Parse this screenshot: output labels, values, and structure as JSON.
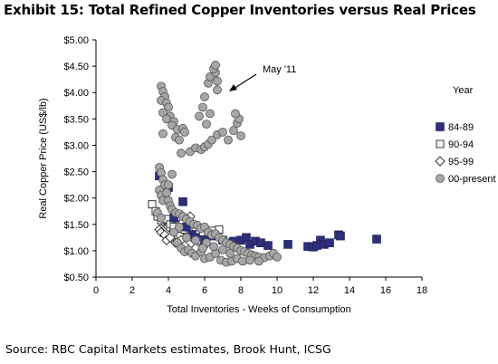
{
  "title": "Exhibit 15: Total Refined Copper Inventories versus Real Prices",
  "source": "Source: RBC Capital Markets estimates, Brook Hunt, ICSG",
  "chart_data": {
    "type": "scatter",
    "xlabel": "Total Inventories - Weeks of Consumption",
    "ylabel": "Real Copper Price (US$/lb)",
    "xlim": [
      0,
      18
    ],
    "ylim": [
      0.5,
      5.0
    ],
    "x_ticks": [
      0,
      2,
      4,
      6,
      8,
      10,
      12,
      14,
      16,
      18
    ],
    "x_tick_labels": [
      "0",
      "2",
      "4",
      "6",
      "8",
      "10",
      "12",
      "14",
      "16",
      "18"
    ],
    "y_ticks": [
      0.5,
      1.0,
      1.5,
      2.0,
      2.5,
      3.0,
      3.5,
      4.0,
      4.5,
      5.0
    ],
    "y_tick_labels": [
      "$0.50",
      "$1.00",
      "$1.50",
      "$2.00",
      "$2.50",
      "$3.00",
      "$3.50",
      "$4.00",
      "$4.50",
      "$5.00"
    ],
    "legend_title": "Year",
    "legend_position": "right",
    "grid": false,
    "annotations": [
      {
        "text": "May '11",
        "arrow_to": [
          7.3,
          4.0
        ]
      }
    ],
    "series": [
      {
        "name": "84-89",
        "marker": "square",
        "color": "#2e2e7a",
        "points": [
          [
            3.5,
            2.42
          ],
          [
            4.0,
            2.2
          ],
          [
            4.8,
            1.93
          ],
          [
            4.3,
            1.62
          ],
          [
            5.0,
            1.45
          ],
          [
            5.3,
            1.3
          ],
          [
            5.5,
            1.25
          ],
          [
            6.0,
            1.2
          ],
          [
            6.5,
            1.28
          ],
          [
            7.0,
            1.2
          ],
          [
            7.3,
            1.15
          ],
          [
            7.6,
            1.18
          ],
          [
            8.0,
            1.2
          ],
          [
            8.3,
            1.25
          ],
          [
            8.5,
            1.12
          ],
          [
            8.8,
            1.18
          ],
          [
            9.1,
            1.15
          ],
          [
            9.5,
            1.1
          ],
          [
            10.6,
            1.12
          ],
          [
            11.7,
            1.08
          ],
          [
            12.0,
            1.07
          ],
          [
            12.2,
            1.1
          ],
          [
            12.4,
            1.2
          ],
          [
            12.6,
            1.12
          ],
          [
            12.9,
            1.15
          ],
          [
            13.4,
            1.3
          ],
          [
            13.5,
            1.28
          ],
          [
            15.5,
            1.22
          ]
        ]
      },
      {
        "name": "90-94",
        "marker": "hollow-square",
        "color": "#333333",
        "points": [
          [
            3.1,
            1.88
          ],
          [
            3.3,
            1.75
          ],
          [
            3.4,
            1.65
          ],
          [
            3.6,
            1.58
          ],
          [
            3.9,
            1.6
          ],
          [
            4.1,
            1.5
          ],
          [
            4.3,
            1.45
          ],
          [
            4.6,
            1.42
          ],
          [
            4.9,
            1.4
          ],
          [
            5.2,
            1.38
          ],
          [
            5.5,
            1.45
          ],
          [
            5.9,
            1.35
          ],
          [
            6.2,
            1.3
          ],
          [
            6.4,
            1.38
          ],
          [
            6.8,
            1.4
          ]
        ]
      },
      {
        "name": "95-99",
        "marker": "hollow-diamond",
        "color": "#333333",
        "points": [
          [
            3.5,
            1.4
          ],
          [
            3.6,
            1.35
          ],
          [
            3.7,
            1.55
          ],
          [
            3.8,
            1.3
          ],
          [
            3.9,
            1.2
          ],
          [
            4.0,
            1.45
          ],
          [
            4.1,
            1.25
          ],
          [
            4.2,
            1.6
          ],
          [
            4.3,
            1.35
          ],
          [
            4.4,
            1.15
          ],
          [
            4.5,
            1.5
          ],
          [
            4.6,
            1.3
          ],
          [
            4.7,
            1.2
          ],
          [
            4.8,
            1.55
          ],
          [
            4.9,
            1.1
          ],
          [
            5.0,
            1.35
          ],
          [
            5.1,
            1.45
          ],
          [
            5.3,
            1.25
          ],
          [
            5.5,
            1.05
          ],
          [
            5.7,
            1.2
          ],
          [
            6.0,
            1.1
          ],
          [
            5.6,
            1.38
          ],
          [
            4.5,
            1.7
          ],
          [
            5.2,
            1.65
          ]
        ]
      },
      {
        "name": "00-present",
        "marker": "circle",
        "color": "#a6a6a6",
        "points": [
          [
            3.6,
            4.12
          ],
          [
            3.7,
            4.02
          ],
          [
            3.8,
            3.92
          ],
          [
            3.6,
            3.85
          ],
          [
            3.9,
            3.8
          ],
          [
            4.0,
            3.72
          ],
          [
            3.7,
            3.62
          ],
          [
            4.1,
            3.55
          ],
          [
            3.9,
            3.5
          ],
          [
            4.3,
            3.45
          ],
          [
            4.2,
            3.38
          ],
          [
            4.5,
            3.3
          ],
          [
            3.7,
            3.22
          ],
          [
            4.4,
            3.15
          ],
          [
            4.6,
            3.1
          ],
          [
            4.8,
            3.32
          ],
          [
            4.9,
            3.25
          ],
          [
            4.7,
            2.85
          ],
          [
            5.2,
            2.88
          ],
          [
            5.5,
            2.95
          ],
          [
            5.8,
            2.92
          ],
          [
            6.0,
            2.97
          ],
          [
            6.2,
            3.02
          ],
          [
            6.4,
            3.1
          ],
          [
            6.7,
            3.2
          ],
          [
            7.0,
            3.25
          ],
          [
            7.3,
            3.1
          ],
          [
            7.6,
            3.28
          ],
          [
            7.8,
            3.42
          ],
          [
            7.9,
            3.5
          ],
          [
            7.7,
            3.6
          ],
          [
            8.0,
            3.18
          ],
          [
            6.1,
            3.4
          ],
          [
            6.3,
            3.6
          ],
          [
            5.9,
            3.72
          ],
          [
            6.0,
            3.92
          ],
          [
            6.2,
            4.18
          ],
          [
            6.3,
            4.3
          ],
          [
            6.6,
            4.38
          ],
          [
            6.7,
            4.22
          ],
          [
            6.5,
            4.45
          ],
          [
            6.6,
            4.52
          ],
          [
            6.7,
            4.05
          ],
          [
            5.7,
            3.55
          ],
          [
            3.5,
            2.58
          ],
          [
            3.6,
            2.48
          ],
          [
            3.7,
            2.35
          ],
          [
            3.8,
            2.25
          ],
          [
            3.5,
            2.15
          ],
          [
            3.6,
            2.05
          ],
          [
            3.7,
            1.95
          ],
          [
            3.9,
            2.1
          ],
          [
            4.0,
            1.95
          ],
          [
            4.1,
            1.85
          ],
          [
            4.2,
            1.78
          ],
          [
            4.4,
            1.72
          ],
          [
            4.6,
            1.7
          ],
          [
            4.8,
            1.65
          ],
          [
            5.0,
            1.6
          ],
          [
            5.2,
            1.55
          ],
          [
            5.4,
            1.5
          ],
          [
            5.6,
            1.48
          ],
          [
            5.8,
            1.42
          ],
          [
            6.0,
            1.45
          ],
          [
            6.2,
            1.35
          ],
          [
            6.4,
            1.3
          ],
          [
            6.6,
            1.32
          ],
          [
            6.8,
            1.25
          ],
          [
            7.0,
            1.2
          ],
          [
            7.2,
            1.15
          ],
          [
            7.4,
            1.12
          ],
          [
            7.6,
            1.08
          ],
          [
            7.8,
            1.05
          ],
          [
            8.0,
            1.0
          ],
          [
            8.2,
            0.98
          ],
          [
            8.4,
            0.95
          ],
          [
            8.6,
            0.92
          ],
          [
            8.8,
            0.9
          ],
          [
            9.0,
            0.88
          ],
          [
            9.3,
            0.87
          ],
          [
            9.6,
            0.9
          ],
          [
            9.8,
            0.95
          ],
          [
            10.0,
            0.88
          ],
          [
            4.5,
            1.15
          ],
          [
            4.7,
            1.05
          ],
          [
            4.9,
            0.98
          ],
          [
            5.1,
            1.02
          ],
          [
            5.3,
            0.95
          ],
          [
            5.5,
            0.9
          ],
          [
            5.8,
            0.98
          ],
          [
            6.0,
            0.85
          ],
          [
            6.3,
            0.88
          ],
          [
            6.6,
            0.95
          ],
          [
            6.9,
            0.82
          ],
          [
            7.2,
            0.78
          ],
          [
            7.5,
            0.8
          ],
          [
            7.8,
            0.85
          ],
          [
            8.1,
            0.8
          ],
          [
            8.5,
            0.82
          ],
          [
            9.0,
            0.8
          ],
          [
            4.3,
            1.35
          ],
          [
            4.6,
            1.45
          ],
          [
            5.5,
            1.2
          ],
          [
            6.1,
            1.15
          ],
          [
            6.5,
            1.08
          ],
          [
            7.0,
            1.02
          ],
          [
            7.4,
            0.95
          ],
          [
            5.0,
            1.25
          ],
          [
            5.9,
            1.05
          ],
          [
            3.4,
            1.72
          ],
          [
            3.6,
            1.62
          ],
          [
            4.0,
            2.25
          ],
          [
            4.2,
            2.45
          ]
        ]
      }
    ]
  }
}
